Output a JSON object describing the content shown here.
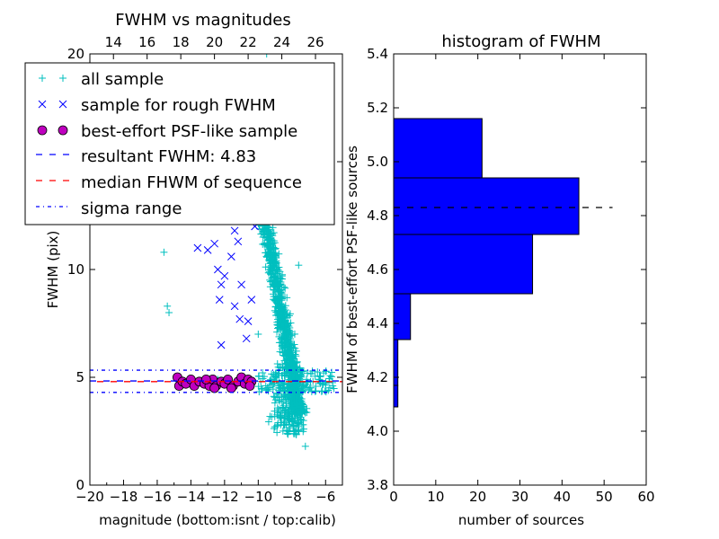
{
  "chart_data": [
    {
      "type": "scatter",
      "title": "FWHM vs magnitudes",
      "xlabel": "magnitude (bottom:isnt / top:calib)",
      "ylabel": "FWHM (pix)",
      "xlim": [
        -20,
        -5
      ],
      "ylim": [
        0,
        20
      ],
      "xticks": [
        -20,
        -18,
        -16,
        -14,
        -12,
        -10,
        -8,
        -6
      ],
      "xtick_labels": [
        "−20",
        "−18",
        "−16",
        "−14",
        "−12",
        "−10",
        "−8",
        "−6"
      ],
      "yticks": [
        0,
        5,
        10,
        15,
        20
      ],
      "ytick_labels": [
        "0",
        "5",
        "10",
        "15",
        "20"
      ],
      "top_axis": {
        "ticks": [
          14,
          16,
          18,
          20,
          22,
          24,
          26
        ],
        "tick_labels": [
          "14",
          "16",
          "18",
          "20",
          "22",
          "24",
          "26"
        ],
        "offset": 32.6
      },
      "grid": false,
      "legend_position": "top-left",
      "series": [
        {
          "name": "all sample",
          "marker": "+",
          "color": "#00bfbf",
          "points": [
            [
              -15.6,
              10.8
            ],
            [
              -15.4,
              8.3
            ],
            [
              -15.3,
              8.0
            ],
            [
              -10.0,
              7.0
            ],
            [
              -9.0,
              14.5
            ],
            [
              -8.9,
              16.0
            ],
            [
              -7.6,
              10.2
            ],
            [
              -7.4,
              3.5
            ],
            [
              -7.3,
              2.6
            ],
            [
              -7.2,
              1.8
            ],
            [
              -12.6,
              4.8
            ],
            [
              -12.4,
              4.9
            ],
            [
              -11.6,
              4.8
            ],
            [
              -9.5,
              20.0
            ]
          ]
        },
        {
          "name": "sample for rough FWHM",
          "marker": "x",
          "color": "#0000ff",
          "points": [
            [
              -13.0,
              10.9
            ],
            [
              -12.6,
              11.2
            ],
            [
              -12.4,
              10.0
            ],
            [
              -12.2,
              9.3
            ],
            [
              -12.3,
              8.6
            ],
            [
              -12.0,
              9.7
            ],
            [
              -11.6,
              10.6
            ],
            [
              -11.4,
              11.8
            ],
            [
              -11.2,
              11.3
            ],
            [
              -11.0,
              9.3
            ],
            [
              -11.1,
              7.7
            ],
            [
              -10.7,
              6.8
            ],
            [
              -10.6,
              7.6
            ],
            [
              -10.4,
              8.6
            ],
            [
              -10.2,
              12.0
            ],
            [
              -10.0,
              14.1
            ],
            [
              -12.2,
              6.5
            ],
            [
              -11.4,
              8.3
            ],
            [
              -13.6,
              11.0
            ],
            [
              -10.8,
              12.4
            ]
          ]
        },
        {
          "name": "best-effort PSF-like sample",
          "marker": "o",
          "color": "#bf00bf",
          "points": [
            [
              -14.8,
              5.0
            ],
            [
              -14.7,
              4.6
            ],
            [
              -14.5,
              4.8
            ],
            [
              -14.3,
              4.7
            ],
            [
              -14.0,
              4.9
            ],
            [
              -13.8,
              4.6
            ],
            [
              -13.5,
              4.8
            ],
            [
              -13.2,
              4.7
            ],
            [
              -12.9,
              4.6
            ],
            [
              -12.7,
              4.9
            ],
            [
              -12.5,
              4.6
            ],
            [
              -12.2,
              4.8
            ],
            [
              -12.0,
              4.7
            ],
            [
              -11.8,
              4.9
            ],
            [
              -11.5,
              4.6
            ],
            [
              -11.2,
              4.8
            ],
            [
              -11.0,
              5.0
            ],
            [
              -10.8,
              4.7
            ],
            [
              -10.6,
              4.9
            ],
            [
              -10.4,
              4.8
            ],
            [
              -12.6,
              4.5
            ],
            [
              -11.6,
              4.5
            ],
            [
              -13.1,
              4.9
            ],
            [
              -10.5,
              4.6
            ]
          ]
        }
      ],
      "lines": [
        {
          "name": "resultant FWHM: 4.83",
          "y": 4.83,
          "style": "dashed",
          "color": "#0000ff"
        },
        {
          "name": "median FHWM of sequence",
          "y": 4.8,
          "style": "dashed",
          "color": "#ff0000"
        },
        {
          "name": "sigma range",
          "y": [
            4.3,
            5.33
          ],
          "style": "dashdot",
          "color": "#0000ff"
        }
      ]
    },
    {
      "type": "bar",
      "orientation": "horizontal",
      "title": "histogram of FWHM",
      "xlabel": "number of sources",
      "ylabel": "FWHM of best-effort PSF-like sources",
      "xlim": [
        0,
        60
      ],
      "ylim": [
        3.8,
        5.4
      ],
      "xticks": [
        0,
        10,
        20,
        30,
        40,
        50,
        60
      ],
      "yticks": [
        3.8,
        4.0,
        4.2,
        4.4,
        4.6,
        4.8,
        5.0,
        5.2,
        5.4
      ],
      "ytick_labels": [
        "3.8",
        "4.0",
        "4.2",
        "4.4",
        "4.6",
        "4.8",
        "5.0",
        "5.2",
        "5.4"
      ],
      "bins": [
        {
          "y0": 4.09,
          "y1": 4.17,
          "value": 1
        },
        {
          "y0": 4.17,
          "y1": 4.34,
          "value": 1
        },
        {
          "y0": 4.34,
          "y1": 4.51,
          "value": 4
        },
        {
          "y0": 4.51,
          "y1": 4.73,
          "value": 33
        },
        {
          "y0": 4.73,
          "y1": 4.94,
          "value": 44
        },
        {
          "y0": 4.94,
          "y1": 5.16,
          "value": 21
        }
      ],
      "bar_color": "#0000ff",
      "reference_line": {
        "y": 4.83,
        "x_range": [
          0,
          52
        ],
        "style": "dashed",
        "color": "#000000"
      },
      "grid": false
    }
  ]
}
